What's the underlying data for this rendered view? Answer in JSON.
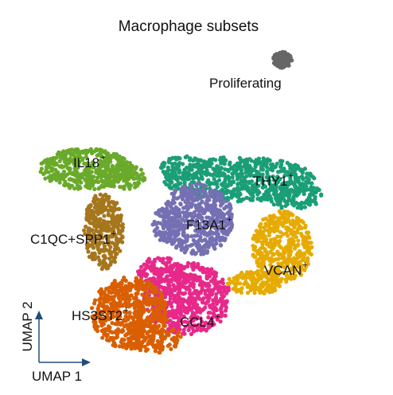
{
  "chart_data": {
    "type": "scatter",
    "title": "Macrophage subsets",
    "xlabel": "UMAP 1",
    "ylabel": "UMAP 2",
    "grid": false,
    "legend": "none (cluster labels on plot)",
    "series": [
      {
        "name": "IL18",
        "superscript": "+",
        "color": "#6aaa2a",
        "center": [
          -1.2,
          1.6
        ]
      },
      {
        "name": "THY1",
        "superscript": "+",
        "color": "#1b9e77",
        "center": [
          2.3,
          1.5
        ]
      },
      {
        "name": "F13A1",
        "superscript": "+",
        "color": "#7570b3",
        "center": [
          1.0,
          0.6
        ]
      },
      {
        "name": "C1QC+SPP1",
        "superscript": "+",
        "color": "#a6761d",
        "center": [
          -0.9,
          0.3
        ]
      },
      {
        "name": "VCAN",
        "superscript": "+",
        "color": "#e6ab02",
        "center": [
          2.3,
          -0.3
        ]
      },
      {
        "name": "CCL4",
        "superscript": "+",
        "color": "#e7298a",
        "center": [
          0.6,
          -1.0
        ]
      },
      {
        "name": "HS3ST2",
        "superscript": "+",
        "color": "#d95f02",
        "center": [
          -0.7,
          -1.5
        ]
      },
      {
        "name": "Proliferating",
        "superscript": "",
        "color": "#666666",
        "center": [
          3.0,
          4.2
        ]
      }
    ]
  }
}
